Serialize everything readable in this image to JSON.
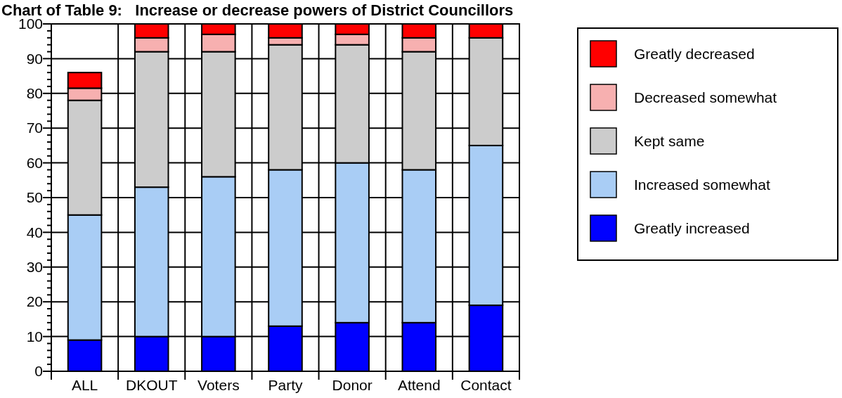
{
  "chart_data": {
    "type": "bar",
    "stacked": true,
    "title": "Chart of Table 9:   Increase or decrease powers of District Councillors",
    "categories": [
      "ALL",
      "DKOUT",
      "Voters",
      "Party",
      "Donor",
      "Attend",
      "Contact"
    ],
    "series": [
      {
        "name": "Greatly increased",
        "color": "#0000ff",
        "values": [
          9,
          10,
          10,
          13,
          14,
          14,
          19
        ]
      },
      {
        "name": "Increased somewhat",
        "color": "#a9cdf5",
        "values": [
          36,
          43,
          46,
          45,
          46,
          44,
          46
        ]
      },
      {
        "name": "Kept same",
        "color": "#cccccc",
        "values": [
          33,
          39,
          36,
          36,
          34,
          34,
          31
        ]
      },
      {
        "name": "Decreased somewhat",
        "color": "#f7b0b0",
        "values": [
          3.5,
          4,
          5,
          2,
          3,
          4,
          0
        ]
      },
      {
        "name": "Greatly decreased",
        "color": "#ff0000",
        "values": [
          4.5,
          4,
          3,
          4,
          3,
          4,
          4
        ]
      }
    ],
    "ylim": [
      0,
      100
    ],
    "yticks": [
      0,
      {
        "value": 2,
        "label": null
      },
      {
        "value": 4,
        "label": null
      },
      {
        "value": 6,
        "label": null
      },
      {
        "value": 8,
        "label": null
      },
      10,
      {
        "value": 12,
        "label": null
      },
      {
        "value": 14,
        "label": null
      },
      {
        "value": 16,
        "label": null
      },
      {
        "value": 18,
        "label": null
      },
      20,
      {
        "value": 22,
        "label": null
      },
      {
        "value": 24,
        "label": null
      },
      {
        "value": 26,
        "label": null
      },
      {
        "value": 28,
        "label": null
      },
      30,
      {
        "value": 32,
        "label": null
      },
      {
        "value": 34,
        "label": null
      },
      {
        "value": 36,
        "label": null
      },
      {
        "value": 38,
        "label": null
      },
      40,
      {
        "value": 42,
        "label": null
      },
      {
        "value": 44,
        "label": null
      },
      {
        "value": 46,
        "label": null
      },
      {
        "value": 48,
        "label": null
      },
      50,
      {
        "value": 52,
        "label": null
      },
      {
        "value": 54,
        "label": null
      },
      {
        "value": 56,
        "label": null
      },
      {
        "value": 58,
        "label": null
      },
      60,
      {
        "value": 62,
        "label": null
      },
      {
        "value": 64,
        "label": null
      },
      {
        "value": 66,
        "label": null
      },
      {
        "value": 68,
        "label": null
      },
      70,
      {
        "value": 72,
        "label": null
      },
      {
        "value": 74,
        "label": null
      },
      {
        "value": 76,
        "label": null
      },
      {
        "value": 78,
        "label": null
      },
      80,
      {
        "value": 82,
        "label": null
      },
      {
        "value": 84,
        "label": null
      },
      {
        "value": 86,
        "label": null
      },
      {
        "value": 88,
        "label": null
      },
      90,
      {
        "value": 92,
        "label": null
      },
      {
        "value": 94,
        "label": null
      },
      {
        "value": 96,
        "label": null
      },
      {
        "value": 98,
        "label": null
      },
      100
    ],
    "grid": true,
    "legend": "right"
  }
}
